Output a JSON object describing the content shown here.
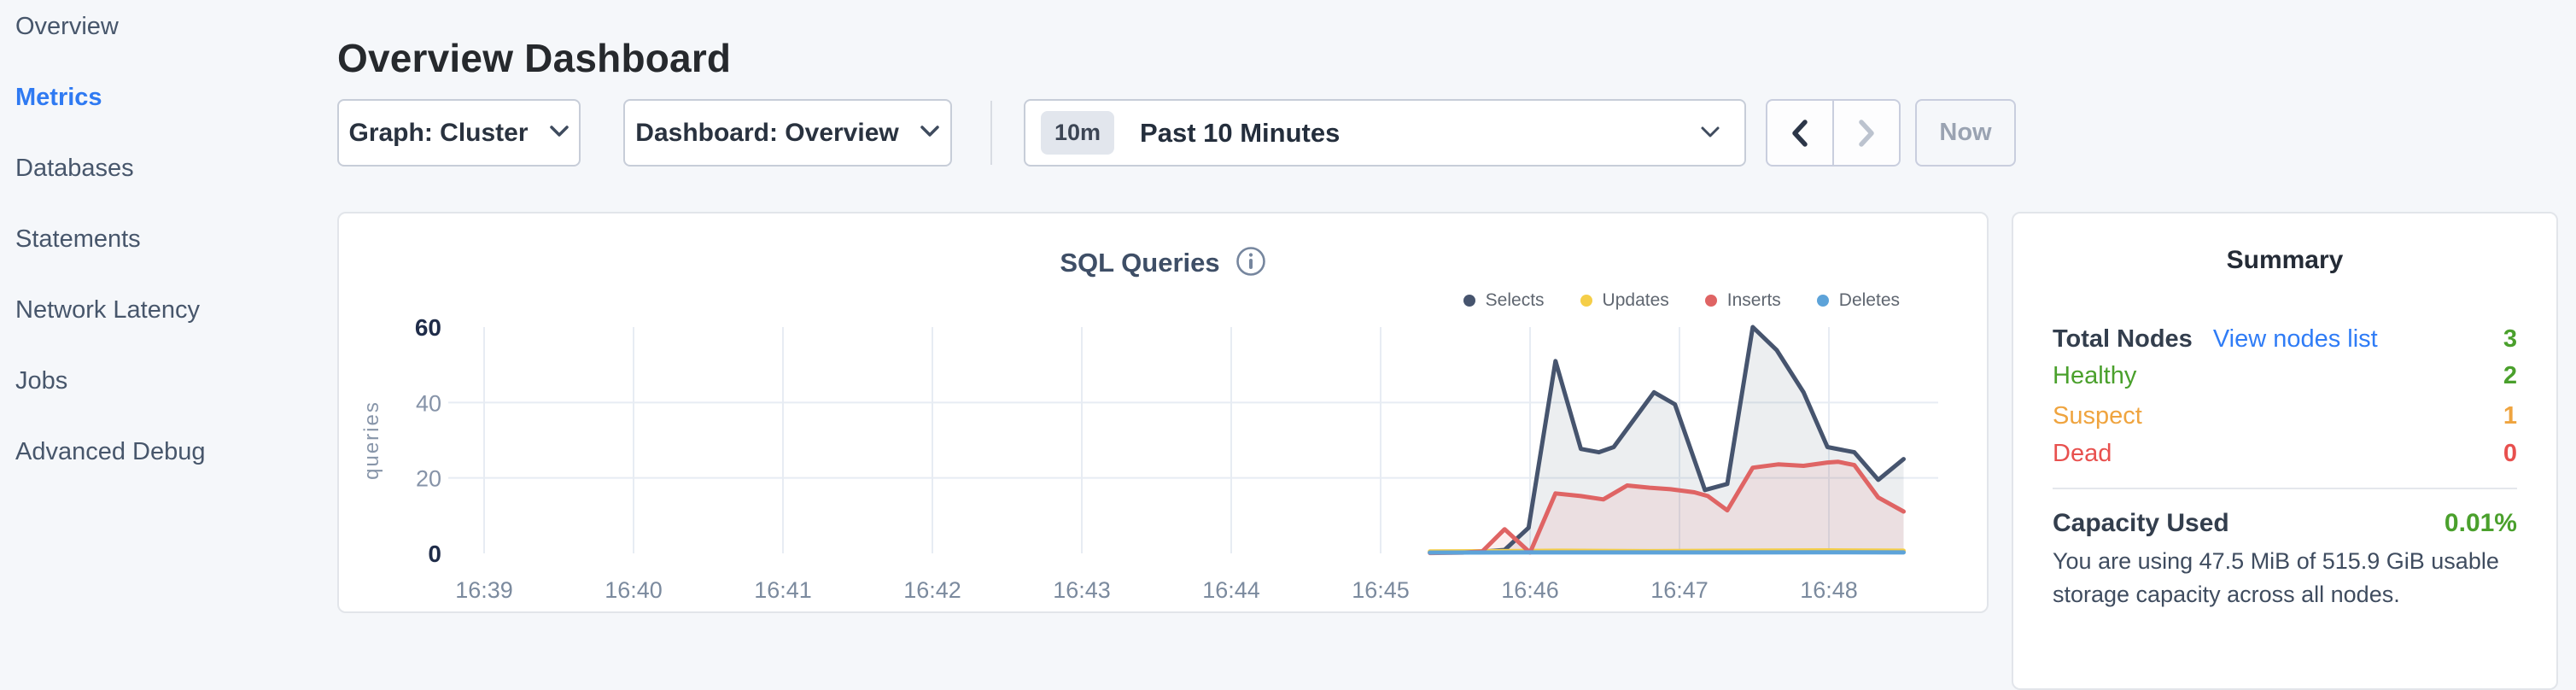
{
  "sidebar": {
    "items": [
      {
        "label": "Overview",
        "active": false
      },
      {
        "label": "Metrics",
        "active": true
      },
      {
        "label": "Databases",
        "active": false
      },
      {
        "label": "Statements",
        "active": false
      },
      {
        "label": "Network Latency",
        "active": false
      },
      {
        "label": "Jobs",
        "active": false
      },
      {
        "label": "Advanced Debug",
        "active": false
      }
    ],
    "active_color": "#2f7af2"
  },
  "header": {
    "title": "Overview Dashboard"
  },
  "toolbar": {
    "graph_dropdown": "Graph: Cluster",
    "dashboard_dropdown": "Dashboard: Overview",
    "time_range_badge": "10m",
    "time_range_label": "Past 10 Minutes",
    "now_button": "Now"
  },
  "chart_card": {
    "title": "SQL Queries",
    "info_icon": "info-circle"
  },
  "summary": {
    "title": "Summary",
    "rows": [
      {
        "label": "Total Nodes",
        "link": "View nodes list",
        "value": "3",
        "label_color": "#333e4d",
        "value_color": "#4aa02c",
        "first": true
      },
      {
        "label": "Healthy",
        "link": "",
        "value": "2",
        "label_color": "#4aa02c",
        "value_color": "#4aa02c",
        "first": false
      },
      {
        "label": "Suspect",
        "link": "",
        "value": "1",
        "label_color": "#efa43f",
        "value_color": "#efa43f",
        "first": false
      },
      {
        "label": "Dead",
        "link": "",
        "value": "0",
        "label_color": "#e8504e",
        "value_color": "#e8504e",
        "first": false
      }
    ],
    "link_color": "#2f7cf6",
    "capacity_label": "Capacity Used",
    "capacity_value": "0.01%",
    "capacity_value_color": "#4aa02c",
    "description": "You are using 47.5 MiB of 515.9 GiB usable storage capacity across all nodes."
  },
  "chart_data": {
    "type": "area",
    "title": "SQL Queries",
    "xlabel": "",
    "ylabel": "queries",
    "ylim": [
      0,
      60
    ],
    "y_ticks": [
      0,
      20,
      40,
      60
    ],
    "x_range_minutes": [
      38.79,
      48.73
    ],
    "x_ticks": [
      {
        "label": "16:39",
        "t": 39
      },
      {
        "label": "16:40",
        "t": 40
      },
      {
        "label": "16:41",
        "t": 41
      },
      {
        "label": "16:42",
        "t": 42
      },
      {
        "label": "16:43",
        "t": 43
      },
      {
        "label": "16:44",
        "t": 44
      },
      {
        "label": "16:45",
        "t": 45
      },
      {
        "label": "16:46",
        "t": 46
      },
      {
        "label": "16:47",
        "t": 47
      },
      {
        "label": "16:48",
        "t": 48
      }
    ],
    "grid": true,
    "legend_position": "top-right",
    "series": [
      {
        "name": "Selects",
        "color": "#46546e",
        "fill": "rgba(70,84,110,0.10)",
        "points": [
          [
            45.33,
            0.3
          ],
          [
            45.45,
            0.3
          ],
          [
            45.58,
            0.4
          ],
          [
            45.7,
            0.5
          ],
          [
            45.83,
            0.9
          ],
          [
            45.99,
            6.8
          ],
          [
            46.17,
            51
          ],
          [
            46.34,
            27.7
          ],
          [
            46.46,
            26.8
          ],
          [
            46.56,
            28.2
          ],
          [
            46.83,
            42.7
          ],
          [
            46.97,
            39.5
          ],
          [
            47.17,
            16.8
          ],
          [
            47.32,
            18.4
          ],
          [
            47.49,
            60
          ],
          [
            47.65,
            53.9
          ],
          [
            47.83,
            42.7
          ],
          [
            47.99,
            28.2
          ],
          [
            48.17,
            26.8
          ],
          [
            48.33,
            19.5
          ],
          [
            48.5,
            25
          ]
        ]
      },
      {
        "name": "Updates",
        "color": "#f5ce48",
        "fill": "none",
        "points": [
          [
            45.33,
            0.5
          ],
          [
            45.8,
            0.6
          ],
          [
            46.2,
            0.7
          ],
          [
            46.8,
            0.6
          ],
          [
            47.4,
            0.7
          ],
          [
            48.0,
            0.8
          ],
          [
            48.5,
            0.7
          ]
        ]
      },
      {
        "name": "Inserts",
        "color": "#df6464",
        "fill": "rgba(223,100,100,0.10)",
        "points": [
          [
            45.33,
            0.1
          ],
          [
            45.55,
            0.2
          ],
          [
            45.68,
            0.5
          ],
          [
            45.83,
            6.4
          ],
          [
            46.0,
            0.2
          ],
          [
            46.17,
            15.9
          ],
          [
            46.34,
            15.2
          ],
          [
            46.49,
            14.3
          ],
          [
            46.65,
            18.0
          ],
          [
            46.8,
            17.4
          ],
          [
            46.94,
            17.0
          ],
          [
            47.1,
            16.2
          ],
          [
            47.19,
            15.2
          ],
          [
            47.32,
            11.4
          ],
          [
            47.49,
            22.7
          ],
          [
            47.66,
            23.6
          ],
          [
            47.83,
            23.2
          ],
          [
            47.99,
            24.1
          ],
          [
            48.06,
            24.3
          ],
          [
            48.17,
            23.4
          ],
          [
            48.33,
            14.8
          ],
          [
            48.5,
            11.1
          ]
        ]
      },
      {
        "name": "Deletes",
        "color": "#5da3d9",
        "fill": "none",
        "points": [
          [
            45.33,
            0.2
          ],
          [
            46.0,
            0.25
          ],
          [
            47.0,
            0.25
          ],
          [
            48.0,
            0.3
          ],
          [
            48.5,
            0.25
          ]
        ]
      }
    ],
    "axis_colors": {
      "grid": "#e7ecf3",
      "tick_minor": "#8693a8",
      "tick_major": "#1f2c49",
      "x_tick": "#7b8a9e",
      "ylabel": "#8795a9"
    }
  }
}
